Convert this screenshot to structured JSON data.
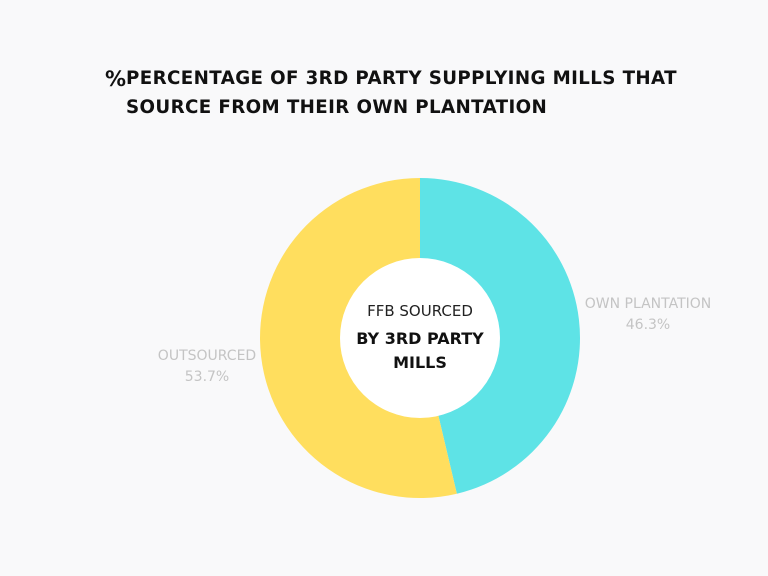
{
  "title": {
    "icon": "%",
    "icon_name": "percent-icon",
    "text": "PERCENTAGE OF 3RD PARTY SUPPLYING MILLS THAT SOURCE FROM THEIR OWN PLANTATION"
  },
  "center_label": {
    "line1": "FFB SOURCED",
    "line2": "BY 3RD PARTY",
    "line3": "MILLS"
  },
  "chart_data": {
    "type": "pie",
    "variant": "donut",
    "title": "PERCENTAGE OF 3RD PARTY SUPPLYING MILLS THAT SOURCE FROM THEIR OWN PLANTATION",
    "slices": [
      {
        "label": "OWN PLANTATION",
        "value": 46.3,
        "value_label": "46.3%",
        "color": "#5ee3e6"
      },
      {
        "label": "OUTSOURCED",
        "value": 53.7,
        "value_label": "53.7%",
        "color": "#ffde5e"
      }
    ],
    "start_angle_deg": 0,
    "direction": "clockwise"
  }
}
